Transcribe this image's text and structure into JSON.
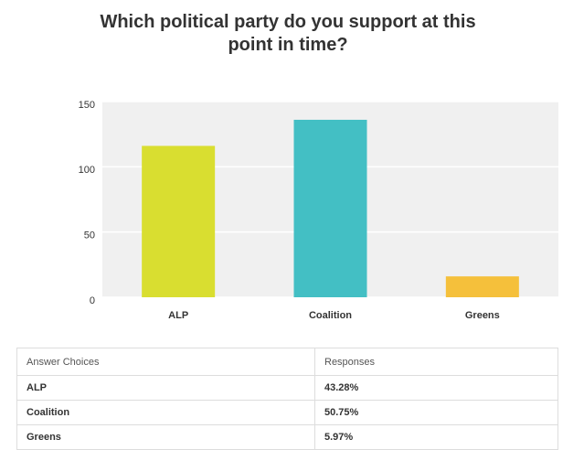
{
  "chart_data": {
    "type": "bar",
    "title": "Which political party do you support at this point in time?",
    "categories": [
      "ALP",
      "Coalition",
      "Greens"
    ],
    "values": [
      116,
      136,
      16
    ],
    "colors": [
      "#d9de30",
      "#43bfc4",
      "#f5c03b"
    ],
    "ylim": [
      0,
      150
    ],
    "yticks": [
      0,
      50,
      100,
      150
    ],
    "grid": true
  },
  "table": {
    "headers": [
      "Answer Choices",
      "Responses"
    ],
    "rows": [
      [
        "ALP",
        "43.28%"
      ],
      [
        "Coalition",
        "50.75%"
      ],
      [
        "Greens",
        "5.97%"
      ]
    ]
  }
}
